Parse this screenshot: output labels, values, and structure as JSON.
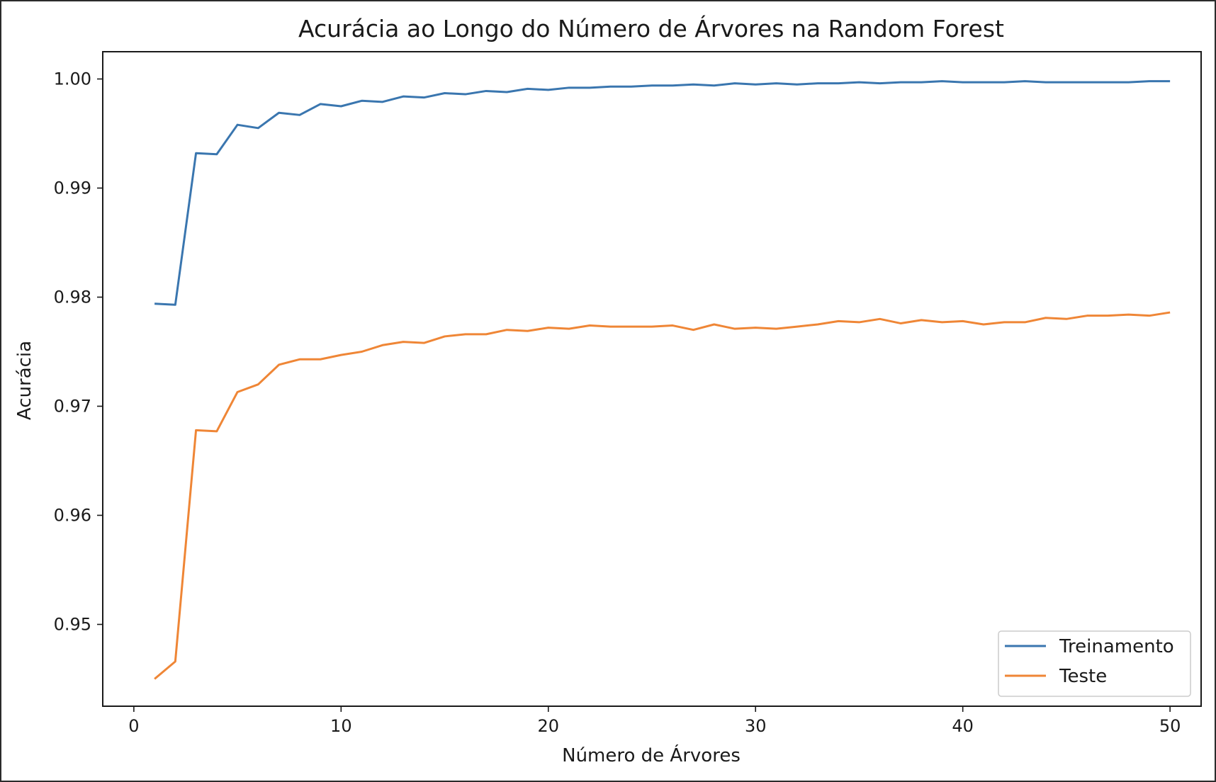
{
  "chart_data": {
    "type": "line",
    "title": "Acurácia ao Longo do Número de Árvores na Random Forest",
    "xlabel": "Número de Árvores",
    "ylabel": "Acurácia",
    "xlim": [
      -1.5,
      51.5
    ],
    "ylim": [
      0.9425,
      1.0025
    ],
    "xticks": [
      0,
      10,
      20,
      30,
      40,
      50
    ],
    "xtick_labels": [
      "0",
      "10",
      "20",
      "30",
      "40",
      "50"
    ],
    "yticks": [
      0.95,
      0.96,
      0.97,
      0.98,
      0.99,
      1.0
    ],
    "ytick_labels": [
      "0.95",
      "0.96",
      "0.97",
      "0.98",
      "0.99",
      "1.00"
    ],
    "grid": false,
    "legend_position": "lower-right",
    "x": [
      1,
      2,
      3,
      4,
      5,
      6,
      7,
      8,
      9,
      10,
      11,
      12,
      13,
      14,
      15,
      16,
      17,
      18,
      19,
      20,
      21,
      22,
      23,
      24,
      25,
      26,
      27,
      28,
      29,
      30,
      31,
      32,
      33,
      34,
      35,
      36,
      37,
      38,
      39,
      40,
      41,
      42,
      43,
      44,
      45,
      46,
      47,
      48,
      49,
      50
    ],
    "series": [
      {
        "name": "Treinamento",
        "color": "#3a76af",
        "values": [
          0.9794,
          0.9793,
          0.9932,
          0.9931,
          0.9958,
          0.9955,
          0.9969,
          0.9967,
          0.9977,
          0.9975,
          0.998,
          0.9979,
          0.9984,
          0.9983,
          0.9987,
          0.9986,
          0.9989,
          0.9988,
          0.9991,
          0.999,
          0.9992,
          0.9992,
          0.9993,
          0.9993,
          0.9994,
          0.9994,
          0.9995,
          0.9994,
          0.9996,
          0.9995,
          0.9996,
          0.9995,
          0.9996,
          0.9996,
          0.9997,
          0.9996,
          0.9997,
          0.9997,
          0.9998,
          0.9997,
          0.9997,
          0.9997,
          0.9998,
          0.9997,
          0.9997,
          0.9997,
          0.9997,
          0.9997,
          0.9998,
          0.9998
        ]
      },
      {
        "name": "Teste",
        "color": "#ef8636",
        "values": [
          0.945,
          0.9466,
          0.9678,
          0.9677,
          0.9713,
          0.972,
          0.9738,
          0.9743,
          0.9743,
          0.9747,
          0.975,
          0.9756,
          0.9759,
          0.9758,
          0.9764,
          0.9766,
          0.9766,
          0.977,
          0.9769,
          0.9772,
          0.9771,
          0.9774,
          0.9773,
          0.9773,
          0.9773,
          0.9774,
          0.977,
          0.9775,
          0.9771,
          0.9772,
          0.9771,
          0.9773,
          0.9775,
          0.9778,
          0.9777,
          0.978,
          0.9776,
          0.9779,
          0.9777,
          0.9778,
          0.9775,
          0.9777,
          0.9777,
          0.9781,
          0.978,
          0.9783,
          0.9783,
          0.9784,
          0.9783,
          0.9786
        ]
      }
    ]
  }
}
